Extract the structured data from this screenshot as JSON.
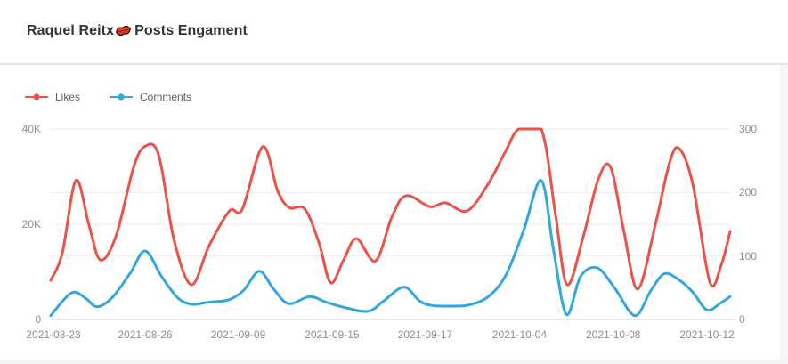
{
  "header": {
    "title_before": "Raquel Reitx",
    "title_emoji": "💋",
    "title_after": "Posts Engament"
  },
  "colors": {
    "likes": "#e9534a",
    "comments": "#32a6de",
    "grid": "#ececec",
    "axis_line": "#cccccc",
    "axis_text": "#8d8d8d",
    "title_text": "#333333",
    "divider": "#e5e5e8",
    "page_gutter": "#f4f5f7"
  },
  "chart_data": {
    "type": "line",
    "title": "Raquel Reitx💋 Posts Engament",
    "legend_position": "top-left",
    "grid_on": true,
    "legend": [
      {
        "label": "Likes",
        "color": "#e9534a",
        "axis": "left"
      },
      {
        "label": "Comments",
        "color": "#32a6de",
        "axis": "right"
      }
    ],
    "left_axis": {
      "min": 0,
      "max": 40000,
      "ticks": [
        {
          "label": "0",
          "value": 0
        },
        {
          "label": "20K",
          "value": 20000
        },
        {
          "label": "40K",
          "value": 40000
        }
      ],
      "grid_values": [
        20000
      ]
    },
    "right_axis": {
      "min": 0,
      "max": 300,
      "ticks": [
        {
          "label": "0",
          "value": 0
        },
        {
          "label": "100",
          "value": 100
        },
        {
          "label": "200",
          "value": 200
        },
        {
          "label": "300",
          "value": 300
        }
      ],
      "grid_values": [
        100,
        200,
        300
      ]
    },
    "x_ticks": [
      {
        "label": "2021-08-23",
        "f": 0.004
      },
      {
        "label": "2021-08-26",
        "f": 0.139
      },
      {
        "label": "2021-09-09",
        "f": 0.276
      },
      {
        "label": "2021-09-15",
        "f": 0.414
      },
      {
        "label": "2021-09-17",
        "f": 0.551
      },
      {
        "label": "2021-10-04",
        "f": 0.69
      },
      {
        "label": "2021-10-08",
        "f": 0.828
      },
      {
        "label": "2021-10-12",
        "f": 0.966
      }
    ],
    "series": [
      {
        "name": "Likes",
        "axis": "left",
        "color": "#e9534a",
        "points": [
          [
            0.0,
            8200
          ],
          [
            0.017,
            14000
          ],
          [
            0.037,
            29200
          ],
          [
            0.056,
            20000
          ],
          [
            0.073,
            12500
          ],
          [
            0.096,
            17500
          ],
          [
            0.122,
            32000
          ],
          [
            0.139,
            36400
          ],
          [
            0.159,
            34500
          ],
          [
            0.181,
            17000
          ],
          [
            0.207,
            7300
          ],
          [
            0.233,
            15500
          ],
          [
            0.263,
            22800
          ],
          [
            0.282,
            23200
          ],
          [
            0.312,
            36300
          ],
          [
            0.334,
            27000
          ],
          [
            0.351,
            23500
          ],
          [
            0.374,
            23200
          ],
          [
            0.395,
            16000
          ],
          [
            0.412,
            7700
          ],
          [
            0.431,
            12500
          ],
          [
            0.45,
            17000
          ],
          [
            0.478,
            12300
          ],
          [
            0.502,
            21500
          ],
          [
            0.523,
            26000
          ],
          [
            0.558,
            23700
          ],
          [
            0.581,
            24500
          ],
          [
            0.613,
            22800
          ],
          [
            0.644,
            28500
          ],
          [
            0.67,
            35500
          ],
          [
            0.689,
            40000
          ],
          [
            0.722,
            40000
          ],
          [
            0.743,
            22000
          ],
          [
            0.76,
            7300
          ],
          [
            0.784,
            17500
          ],
          [
            0.806,
            29500
          ],
          [
            0.824,
            32000
          ],
          [
            0.843,
            19000
          ],
          [
            0.864,
            6400
          ],
          [
            0.89,
            20000
          ],
          [
            0.911,
            33000
          ],
          [
            0.925,
            35900
          ],
          [
            0.945,
            28500
          ],
          [
            0.97,
            7900
          ],
          [
            0.987,
            11500
          ],
          [
            1.0,
            18500
          ]
        ]
      },
      {
        "name": "Comments",
        "axis": "right",
        "color": "#32a6de",
        "points": [
          [
            0.0,
            6
          ],
          [
            0.02,
            32
          ],
          [
            0.035,
            43
          ],
          [
            0.052,
            33
          ],
          [
            0.068,
            20
          ],
          [
            0.09,
            34
          ],
          [
            0.117,
            73
          ],
          [
            0.139,
            108
          ],
          [
            0.163,
            68
          ],
          [
            0.187,
            34
          ],
          [
            0.208,
            24
          ],
          [
            0.231,
            27
          ],
          [
            0.262,
            31
          ],
          [
            0.284,
            46
          ],
          [
            0.307,
            76
          ],
          [
            0.328,
            48
          ],
          [
            0.35,
            25
          ],
          [
            0.381,
            36
          ],
          [
            0.406,
            27
          ],
          [
            0.436,
            18
          ],
          [
            0.468,
            13
          ],
          [
            0.491,
            30
          ],
          [
            0.52,
            51
          ],
          [
            0.543,
            29
          ],
          [
            0.562,
            22
          ],
          [
            0.591,
            21
          ],
          [
            0.616,
            23
          ],
          [
            0.644,
            36
          ],
          [
            0.67,
            70
          ],
          [
            0.696,
            140
          ],
          [
            0.722,
            219
          ],
          [
            0.74,
            110
          ],
          [
            0.759,
            8
          ],
          [
            0.78,
            68
          ],
          [
            0.805,
            81
          ],
          [
            0.831,
            48
          ],
          [
            0.86,
            6
          ],
          [
            0.883,
            45
          ],
          [
            0.903,
            72
          ],
          [
            0.924,
            63
          ],
          [
            0.945,
            43
          ],
          [
            0.966,
            15
          ],
          [
            0.986,
            26
          ],
          [
            1.0,
            36
          ]
        ]
      }
    ]
  }
}
